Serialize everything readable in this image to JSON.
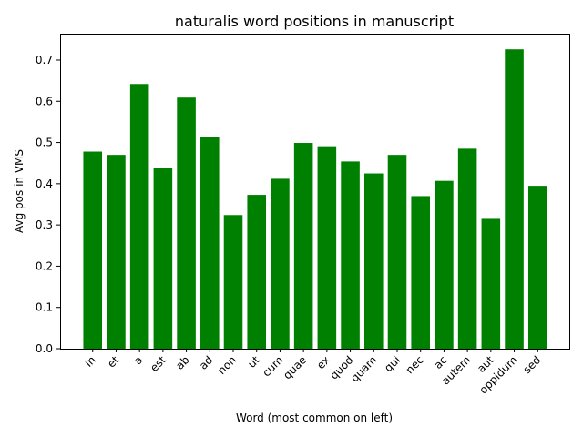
{
  "chart_data": {
    "type": "bar",
    "title": "naturalis word positions in manuscript",
    "xlabel": "Word (most common on left)",
    "ylabel": "Avg pos in VMS",
    "categories": [
      "in",
      "et",
      "a",
      "est",
      "ab",
      "ad",
      "non",
      "ut",
      "cum",
      "quae",
      "ex",
      "quod",
      "quam",
      "qui",
      "nec",
      "ac",
      "autem",
      "aut",
      "oppidum",
      "sed"
    ],
    "values": [
      0.478,
      0.47,
      0.642,
      0.439,
      0.609,
      0.514,
      0.324,
      0.373,
      0.412,
      0.499,
      0.491,
      0.454,
      0.425,
      0.47,
      0.37,
      0.407,
      0.485,
      0.317,
      0.726,
      0.395
    ],
    "ylim": [
      0,
      0.764
    ],
    "yticks": [
      0.0,
      0.1,
      0.2,
      0.3,
      0.4,
      0.5,
      0.6,
      0.7
    ],
    "ytick_labels": [
      "0.0",
      "0.1",
      "0.2",
      "0.3",
      "0.4",
      "0.5",
      "0.6",
      "0.7"
    ],
    "bar_color": "#008000",
    "grid": false,
    "legend": "none"
  }
}
